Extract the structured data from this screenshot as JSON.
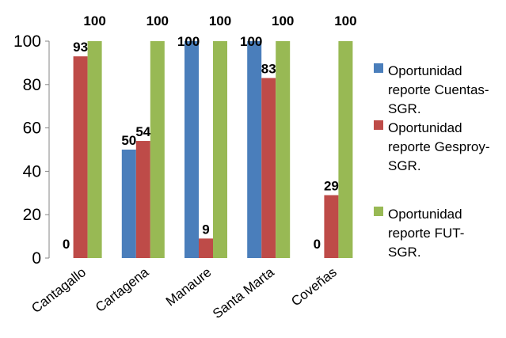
{
  "chart_data": {
    "type": "bar",
    "categories": [
      "Cantagallo",
      "Cartagena",
      "Manaure",
      "Santa Marta",
      "Coveñas"
    ],
    "series": [
      {
        "name": "Oportunidad reporte Cuentas-SGR.",
        "values": [
          0,
          50,
          100,
          100,
          0
        ],
        "color": "#4a7ebb"
      },
      {
        "name": "Oportunidad reporte Gesproy-SGR.",
        "values": [
          93,
          54,
          9,
          83,
          29
        ],
        "color": "#be4b48"
      },
      {
        "name": "Oportunidad reporte FUT-SGR.",
        "values": [
          100,
          100,
          100,
          100,
          100
        ],
        "color": "#98b954"
      }
    ],
    "data_labels": [
      [
        "0",
        "50",
        "100",
        "100",
        "0"
      ],
      [
        "93",
        "54",
        "9",
        "83",
        "29"
      ],
      [
        "100",
        "100",
        "100",
        "100",
        "100"
      ]
    ],
    "legend_lines": [
      [
        "Oportunidad",
        "reporte Cuentas-",
        "SGR."
      ],
      [
        "Oportunidad",
        "reporte Gesproy-",
        "SGR."
      ],
      [
        "Oportunidad",
        "reporte FUT-",
        "SGR."
      ]
    ],
    "yticks": [
      0,
      20,
      40,
      60,
      80,
      100
    ],
    "ylim": [
      0,
      100
    ],
    "grid": false,
    "legend_position": "right"
  }
}
